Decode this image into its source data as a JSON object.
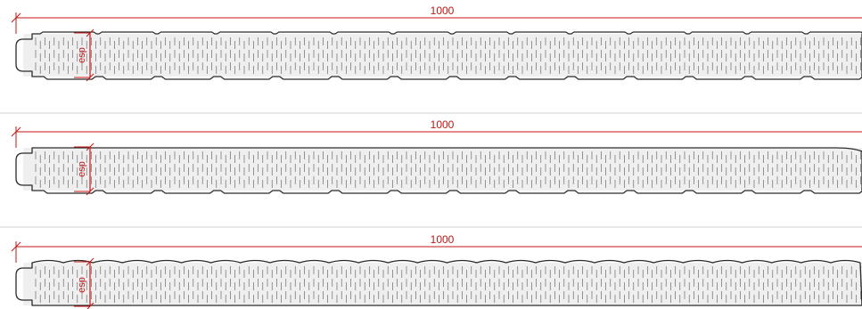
{
  "colors": {
    "dimension": "#c41414",
    "outline": "#2a2a2a",
    "core_fill": "#efefef",
    "hatch": "#555555",
    "separator": "#d0d0d0",
    "background": "#ffffff"
  },
  "panels": [
    {
      "id": "panel-1",
      "width_label": "1000",
      "thickness_label": "esp",
      "profile": "trapezoidal-ribs",
      "rib_count": 14
    },
    {
      "id": "panel-2",
      "width_label": "1000",
      "thickness_label": "esp",
      "profile": "flat-micro-ribbed",
      "rib_count": 14
    },
    {
      "id": "panel-3",
      "width_label": "1000",
      "thickness_label": "esp",
      "profile": "wave-ribbed",
      "rib_count": 28
    }
  ]
}
